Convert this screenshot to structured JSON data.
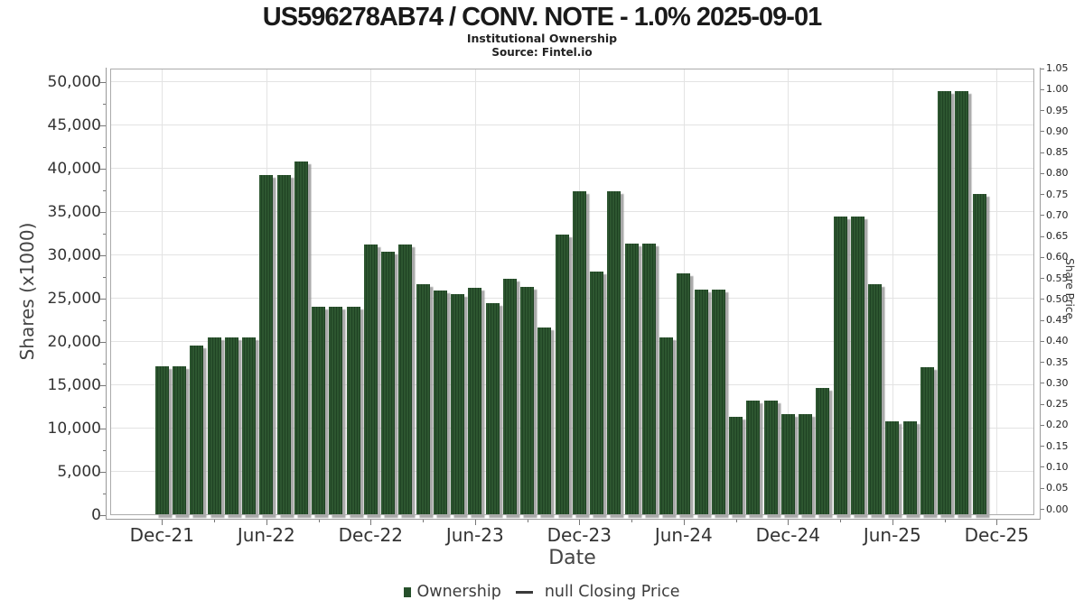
{
  "header": {
    "title": "US596278AB74 / CONV. NOTE - 1.0% 2025-09-01",
    "subtitle": "Institutional Ownership",
    "source": "Source: Fintel.io"
  },
  "axes": {
    "left": {
      "label": "Shares (x1000)",
      "tick_labels": [
        "0",
        "5,000",
        "10,000",
        "15,000",
        "20,000",
        "25,000",
        "30,000",
        "35,000",
        "40,000",
        "45,000",
        "50,000"
      ]
    },
    "right": {
      "label": "Share Price",
      "tick_labels": [
        "0.00",
        "0.05",
        "0.10",
        "0.15",
        "0.20",
        "0.25",
        "0.30",
        "0.35",
        "0.40",
        "0.45",
        "0.50",
        "0.55",
        "0.60",
        "0.65",
        "0.70",
        "0.75",
        "0.80",
        "0.85",
        "0.90",
        "0.95",
        "1.00",
        "1.05"
      ]
    },
    "bottom": {
      "label": "Date",
      "tick_labels": [
        "Dec-21",
        "Jun-22",
        "Dec-22",
        "Jun-23",
        "Dec-23",
        "Jun-24",
        "Dec-24",
        "Jun-25",
        "Dec-25"
      ]
    }
  },
  "legend": {
    "ownership_label": "Ownership",
    "price_label": "null Closing Price"
  },
  "colors": {
    "bar": "#2d5630",
    "bar_stripe": "#1f4223",
    "bar_shadow": "#a8a8a8",
    "grid": "#e3e3e3",
    "axis_line": "#999999",
    "plot_border": "#ababab",
    "title_text": "#1a1a1a",
    "tick_text": "#333333"
  },
  "chart_data": {
    "type": "bar",
    "title": "US596278AB74 / CONV. NOTE - 1.0% 2025-09-01",
    "subtitle": "Institutional Ownership",
    "xlabel": "Date",
    "ylabel": "Shares (x1000)",
    "y2label": "Share Price",
    "ylim": [
      0,
      50000
    ],
    "y2lim": [
      0.0,
      1.05
    ],
    "grid": true,
    "legend_position": "bottom",
    "x": [
      "Dec-21",
      "Jan-22",
      "Feb-22",
      "Mar-22",
      "Apr-22",
      "May-22",
      "Jun-22",
      "Jul-22",
      "Aug-22",
      "Sep-22",
      "Oct-22",
      "Nov-22",
      "Dec-22",
      "Jan-23",
      "Feb-23",
      "Mar-23",
      "Apr-23",
      "May-23",
      "Jun-23",
      "Jul-23",
      "Aug-23",
      "Sep-23",
      "Oct-23",
      "Nov-23",
      "Dec-23",
      "Jan-24",
      "Feb-24",
      "Mar-24",
      "Apr-24",
      "May-24",
      "Jun-24",
      "Jul-24",
      "Aug-24",
      "Sep-24",
      "Oct-24",
      "Nov-24",
      "Dec-24",
      "Jan-25",
      "Feb-25",
      "Mar-25",
      "Apr-25",
      "May-25",
      "Jun-25",
      "Jul-25",
      "Aug-25",
      "Sep-25",
      "Oct-25",
      "Nov-25"
    ],
    "series": [
      {
        "name": "Ownership",
        "type": "bar",
        "axis": "left",
        "values": [
          17200,
          17200,
          19600,
          20500,
          20500,
          20500,
          39300,
          39300,
          40800,
          24100,
          24100,
          24100,
          31200,
          30400,
          31200,
          26700,
          25900,
          25500,
          26300,
          24500,
          27300,
          26400,
          21700,
          32400,
          37400,
          28100,
          37400,
          31350,
          31350,
          20550,
          27900,
          26000,
          26050,
          11350,
          13200,
          13200,
          11650,
          11650,
          14650,
          34500,
          34500,
          26700,
          10800,
          10800,
          17100,
          48950,
          48950,
          37100
        ]
      },
      {
        "name": "null Closing Price",
        "type": "line",
        "axis": "right",
        "values": []
      }
    ]
  }
}
